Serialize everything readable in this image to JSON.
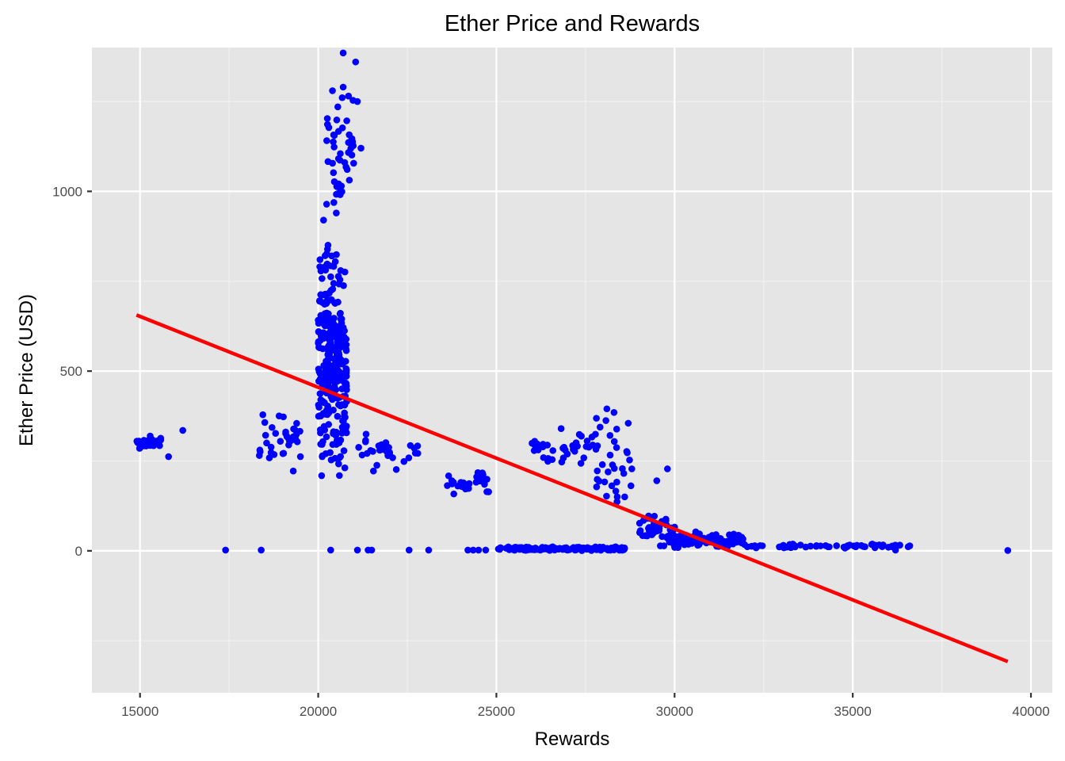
{
  "chart_data": {
    "type": "scatter",
    "title": "Ether Price and Rewards",
    "xlabel": "Rewards",
    "ylabel": "Ether Price (USD)",
    "xlim": [
      13650,
      40600
    ],
    "ylim": [
      -395,
      1400
    ],
    "x_ticks": [
      15000,
      20000,
      25000,
      30000,
      35000,
      40000
    ],
    "y_ticks": [
      0,
      500,
      1000
    ],
    "grid": true,
    "panel_background": "#e5e5e5",
    "point_color": "#0000ff",
    "fit_color": "#ff0000",
    "trend_line": {
      "x": [
        14900,
        39350
      ],
      "y": [
        656,
        -308
      ]
    },
    "clusters": [
      {
        "x": [
          14900,
          15600
        ],
        "y": [
          280,
          320
        ],
        "n": 30
      },
      {
        "x": [
          18300,
          19500
        ],
        "y": [
          230,
          390
        ],
        "n": 34
      },
      {
        "x": [
          20000,
          20800
        ],
        "y": [
          180,
          880
        ],
        "n": 300
      },
      {
        "x": [
          20200,
          21000
        ],
        "y": [
          900,
          1280
        ],
        "n": 45
      },
      {
        "x": [
          21000,
          22800
        ],
        "y": [
          215,
          330
        ],
        "n": 30
      },
      {
        "x": [
          23600,
          24800
        ],
        "y": [
          150,
          230
        ],
        "n": 28
      },
      {
        "x": [
          25000,
          28600
        ],
        "y": [
          0,
          12
        ],
        "n": 160
      },
      {
        "x": [
          26000,
          28000
        ],
        "y": [
          225,
          350
        ],
        "n": 40
      },
      {
        "x": [
          27800,
          28800
        ],
        "y": [
          85,
          390
        ],
        "n": 28
      },
      {
        "x": [
          29000,
          30000
        ],
        "y": [
          20,
          100
        ],
        "n": 45
      },
      {
        "x": [
          29800,
          32000
        ],
        "y": [
          5,
          55
        ],
        "n": 130
      },
      {
        "x": [
          32000,
          36600
        ],
        "y": [
          5,
          20
        ],
        "n": 55
      }
    ],
    "points": [
      [
        20700,
        1385
      ],
      [
        21050,
        1360
      ],
      [
        20700,
        1290
      ],
      [
        20400,
        1280
      ],
      [
        20850,
        1265
      ],
      [
        21100,
        1250
      ],
      [
        20550,
        1235
      ],
      [
        21200,
        1120
      ],
      [
        20150,
        920
      ],
      [
        20050,
        810
      ],
      [
        16200,
        335
      ],
      [
        15800,
        262
      ],
      [
        19500,
        262
      ],
      [
        19300,
        222
      ],
      [
        21550,
        222
      ],
      [
        17400,
        2
      ],
      [
        18400,
        2
      ],
      [
        20350,
        2
      ],
      [
        21100,
        2
      ],
      [
        21400,
        2
      ],
      [
        21500,
        2
      ],
      [
        22550,
        2
      ],
      [
        23100,
        2
      ],
      [
        24200,
        2
      ],
      [
        24350,
        2
      ],
      [
        24500,
        2
      ],
      [
        24700,
        2
      ],
      [
        28100,
        395
      ],
      [
        28300,
        385
      ],
      [
        28700,
        355
      ],
      [
        28800,
        228
      ],
      [
        29800,
        228
      ],
      [
        29500,
        195
      ],
      [
        28600,
        150
      ],
      [
        29600,
        14
      ],
      [
        29700,
        14
      ],
      [
        35300,
        12
      ],
      [
        36000,
        10
      ],
      [
        36200,
        2
      ],
      [
        36600,
        14
      ],
      [
        39350,
        1
      ]
    ]
  }
}
